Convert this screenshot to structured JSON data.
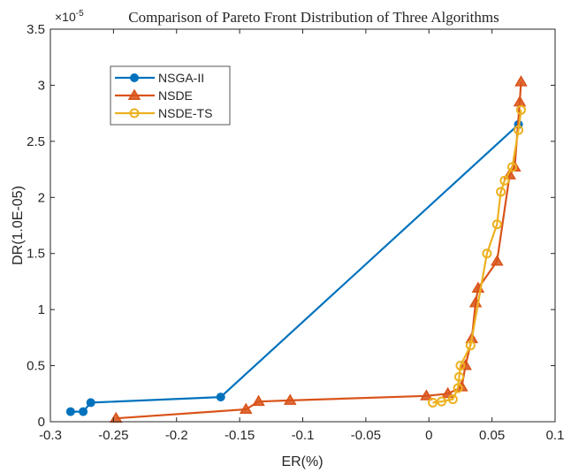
{
  "chart_data": {
    "type": "line",
    "title": "Comparison of Pareto Front Distribution of Three Algorithms",
    "y_exponent_label": "×10",
    "y_exponent_power": "-5",
    "xlabel": "ER(%)",
    "ylabel": "DR(1.0E-05)",
    "xlim": [
      -0.3,
      0.1
    ],
    "ylim": [
      0,
      3.5
    ],
    "xticks": [
      -0.3,
      -0.25,
      -0.2,
      -0.15,
      -0.1,
      -0.05,
      0,
      0.05,
      0.1
    ],
    "xtick_labels": [
      "-0.3",
      "-0.25",
      "-0.2",
      "-0.15",
      "-0.1",
      "-0.05",
      "0",
      "0.05",
      "0.1"
    ],
    "yticks": [
      0,
      0.5,
      1,
      1.5,
      2,
      2.5,
      3,
      3.5
    ],
    "ytick_labels": [
      "0",
      "0.5",
      "1",
      "1.5",
      "2",
      "2.5",
      "3",
      "3.5"
    ],
    "grid": false,
    "legend_position": "upper left",
    "series": [
      {
        "name": "NSGA-II",
        "color": "#0072BD",
        "marker": "circle-filled",
        "x": [
          -0.284,
          -0.274,
          -0.268,
          -0.165,
          0.071
        ],
        "y": [
          0.09,
          0.09,
          0.17,
          0.22,
          2.65
        ]
      },
      {
        "name": "NSDE",
        "color": "#D95319",
        "marker": "triangle",
        "x": [
          -0.248,
          -0.145,
          -0.135,
          -0.11,
          -0.002,
          0.015,
          0.026,
          0.029,
          0.034,
          0.037,
          0.039,
          0.054,
          0.064,
          0.068,
          0.072,
          0.073
        ],
        "y": [
          0.03,
          0.11,
          0.18,
          0.19,
          0.23,
          0.25,
          0.31,
          0.5,
          0.74,
          1.06,
          1.19,
          1.43,
          2.2,
          2.27,
          2.85,
          3.03
        ]
      },
      {
        "name": "NSDE-TS",
        "color": "#EDB120",
        "marker": "circle-open",
        "x": [
          0.003,
          0.01,
          0.019,
          0.023,
          0.024,
          0.025,
          0.033,
          0.046,
          0.054,
          0.057,
          0.06,
          0.066,
          0.071,
          0.073
        ],
        "y": [
          0.17,
          0.18,
          0.2,
          0.3,
          0.4,
          0.5,
          0.68,
          1.5,
          1.76,
          2.05,
          2.15,
          2.27,
          2.6,
          2.78
        ]
      }
    ]
  }
}
